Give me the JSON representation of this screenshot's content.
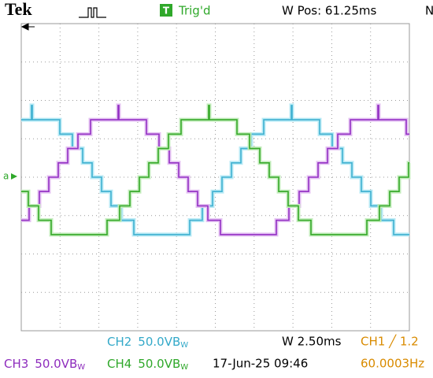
{
  "header": {
    "brand": "Tek",
    "trigger_icon": "T",
    "trigger_status": "Trig'd",
    "position": "W Pos: 61.25ms",
    "menu_cut": "N"
  },
  "marker": "a",
  "footer": {
    "ch2": {
      "channel": "CH2",
      "scale": "50.0V",
      "bw": "B",
      "bw_sub": "W"
    },
    "timebase": "W 2.50ms",
    "ch1_trigger": "CH1 ╱ 1.2",
    "ch3": {
      "channel": "CH3",
      "scale": "50.0V",
      "bw": "B",
      "bw_sub": "W"
    },
    "ch4": {
      "channel": "CH4",
      "scale": "50.0V",
      "bw": "B",
      "bw_sub": "W"
    },
    "datetime": "17-Jun-25 09:46",
    "frequency": "60.0003Hz"
  }
}
